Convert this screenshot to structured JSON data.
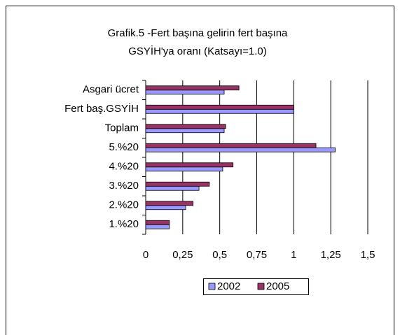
{
  "chart_data": {
    "type": "barh",
    "title": "Grafik.5 -Fert başına gelirin fert başına",
    "subtitle": "GSYİH'ya oranı (Katsayı=1.0)",
    "categories": [
      "Asgari ücret",
      "Fert baş.GSYİH",
      "Toplam",
      "5.%20",
      "4.%20",
      "3.%20",
      "2.%20",
      "1.%20"
    ],
    "series": [
      {
        "name": "2002",
        "color": "#9999ff",
        "values": [
          0.53,
          1.0,
          0.53,
          1.28,
          0.52,
          0.36,
          0.27,
          0.16
        ]
      },
      {
        "name": "2005",
        "color": "#993366",
        "values": [
          0.63,
          1.0,
          0.54,
          1.15,
          0.59,
          0.43,
          0.32,
          0.16
        ]
      }
    ],
    "xlim": [
      0,
      1.5
    ],
    "xticks": [
      0,
      {
        "value": 0.25,
        "label": "0,25"
      },
      {
        "value": 0.5,
        "label": "0,5"
      },
      {
        "value": 0.75,
        "label": "0,75"
      },
      1,
      {
        "value": 1.25,
        "label": "1,25"
      },
      {
        "value": 1.5,
        "label": "1,5"
      }
    ],
    "grid": true,
    "legend": "bottom"
  }
}
